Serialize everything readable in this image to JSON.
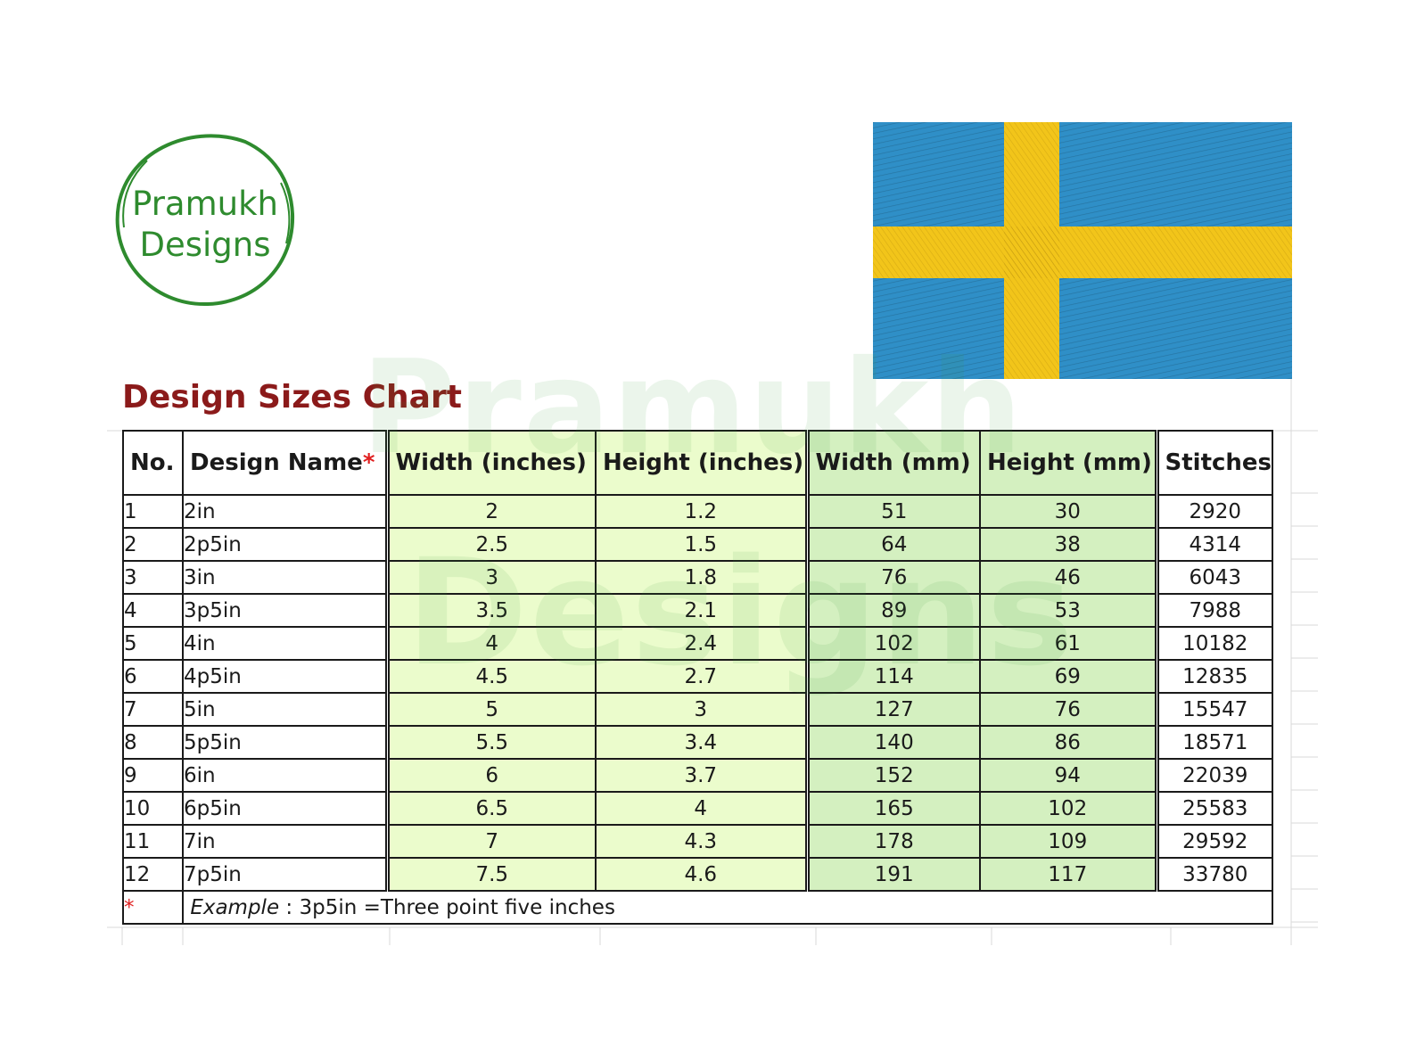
{
  "logo": {
    "line1": "Pramukh",
    "line2": "Designs"
  },
  "flag": {
    "blue": "#2f8fc7",
    "yellow": "#f2c51a",
    "icon": "sweden-flag-embroidery"
  },
  "watermark": {
    "line1": "Pramukh",
    "line2": "Designs"
  },
  "title": "Design Sizes Chart",
  "table": {
    "headers": {
      "no": "No.",
      "name": "Design Name",
      "name_marker": "*",
      "width_in": "Width (inches)",
      "height_in": "Height (inches)",
      "width_mm": "Width (mm)",
      "height_mm": "Height (mm)",
      "stitches": "Stitches"
    },
    "rows": [
      [
        "1",
        "2in",
        "2",
        "1.2",
        "51",
        "30",
        "2920"
      ],
      [
        "2",
        "2p5in",
        "2.5",
        "1.5",
        "64",
        "38",
        "4314"
      ],
      [
        "3",
        "3in",
        "3",
        "1.8",
        "76",
        "46",
        "6043"
      ],
      [
        "4",
        "3p5in",
        "3.5",
        "2.1",
        "89",
        "53",
        "7988"
      ],
      [
        "5",
        "4in",
        "4",
        "2.4",
        "102",
        "61",
        "10182"
      ],
      [
        "6",
        "4p5in",
        "4.5",
        "2.7",
        "114",
        "69",
        "12835"
      ],
      [
        "7",
        "5in",
        "5",
        "3",
        "127",
        "76",
        "15547"
      ],
      [
        "8",
        "5p5in",
        "5.5",
        "3.4",
        "140",
        "86",
        "18571"
      ],
      [
        "9",
        "6in",
        "6",
        "3.7",
        "152",
        "94",
        "22039"
      ],
      [
        "10",
        "6p5in",
        "6.5",
        "4",
        "165",
        "102",
        "25583"
      ],
      [
        "11",
        "7in",
        "7",
        "4.3",
        "178",
        "109",
        "29592"
      ],
      [
        "12",
        "7p5in",
        "7.5",
        "4.6",
        "191",
        "117",
        "33780"
      ]
    ],
    "footnote": {
      "marker": "*",
      "example_label": "Example",
      "text": " : 3p5in =Three point five inches"
    }
  },
  "colors": {
    "title": "#8b1a1a",
    "logo_green": "#2e8b2e",
    "inches_bg": "#ebfccc",
    "mm_bg": "#d4f0c0"
  }
}
